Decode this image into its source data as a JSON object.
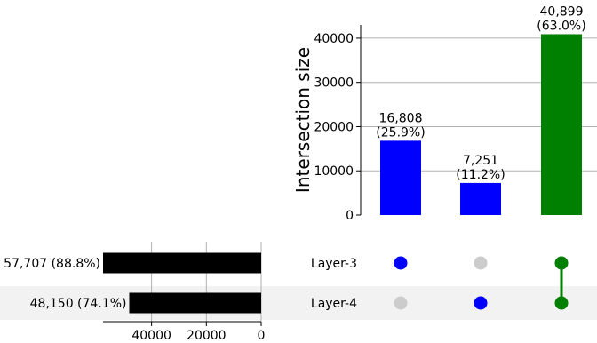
{
  "chart_data": {
    "type": "bar",
    "title": "",
    "ylabel": "Intersection size",
    "ylim": [
      0,
      43000
    ],
    "yticks": [
      0,
      10000,
      20000,
      30000,
      40000
    ],
    "grid": true,
    "sets": [
      {
        "name": "Layer-3",
        "size": 57707,
        "size_label": "57,707 (88.8%)"
      },
      {
        "name": "Layer-4",
        "size": 48150,
        "size_label": "48,150 (74.1%)"
      }
    ],
    "set_size_ticks": [
      40000,
      20000,
      0
    ],
    "set_size_xlim": [
      57707,
      0
    ],
    "intersections": [
      {
        "members": [
          "Layer-3"
        ],
        "value": 16808,
        "label": "16,808",
        "pct": "(25.9%)",
        "color": "#0000ff"
      },
      {
        "members": [
          "Layer-4"
        ],
        "value": 7251,
        "label": "7,251",
        "pct": "(11.2%)",
        "color": "#0000ff"
      },
      {
        "members": [
          "Layer-3",
          "Layer-4"
        ],
        "value": 40899,
        "label": "40,899",
        "pct": "(63.0%)",
        "color": "#008000"
      }
    ],
    "colors": {
      "bar_default": "#000000",
      "dot_inactive": "#cccccc",
      "stripe": "#f2f2f2",
      "grid": "#b0b0b0"
    }
  }
}
